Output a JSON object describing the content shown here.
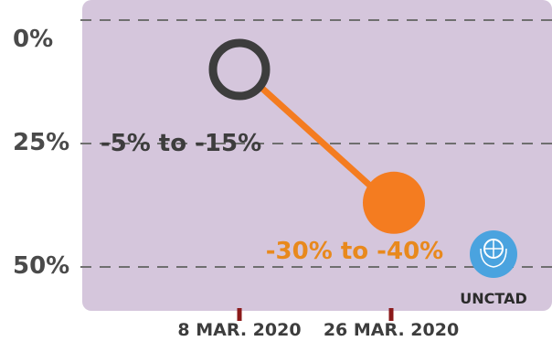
{
  "chart_data": {
    "type": "line",
    "title": "",
    "xlabel": "",
    "ylabel": "",
    "categories": [
      "8 MAR. 2020",
      "26 MAR. 2020"
    ],
    "y_tick_labels": [
      "0%",
      "25%",
      "50%"
    ],
    "ylim": [
      0,
      50
    ],
    "y_inverted": true,
    "grid": "horizontal dashed",
    "series": [
      {
        "values": [
          10,
          37
        ],
        "point_labels": [
          "-5% to -15%",
          "-30% to -40%"
        ],
        "colors": [
          "#3d3d3d",
          "#f47c20"
        ]
      }
    ],
    "annotation": "UNCTAD",
    "colors": {
      "plot_background": "#d5c6dc",
      "gridline": "#6f6f6f",
      "tick_marker": "#8b1a1a",
      "connector": "#f47c20",
      "logo": "#4aa3df"
    }
  }
}
